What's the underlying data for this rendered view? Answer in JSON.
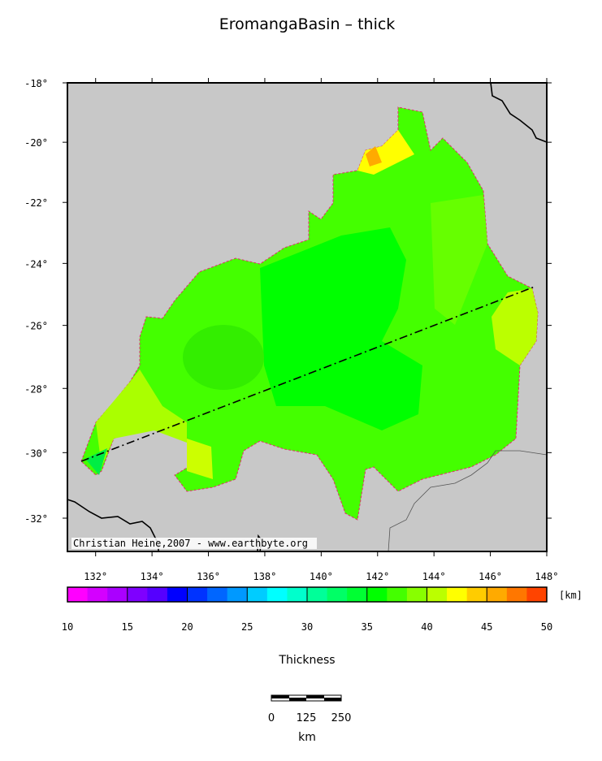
{
  "title": "EromangaBasin – thick",
  "map": {
    "lonlim": [
      131,
      148
    ],
    "latlim": [
      -18,
      -33
    ],
    "lon_ticks": [
      {
        "value": 132,
        "label": "132°"
      },
      {
        "value": 134,
        "label": "134°"
      },
      {
        "value": 136,
        "label": "136°"
      },
      {
        "value": 138,
        "label": "138°"
      },
      {
        "value": 140,
        "label": "140°"
      },
      {
        "value": 142,
        "label": "142°"
      },
      {
        "value": 144,
        "label": "144°"
      },
      {
        "value": 146,
        "label": "146°"
      },
      {
        "value": 148,
        "label": "148°"
      }
    ],
    "lat_ticks": [
      {
        "value": -18,
        "label": "-18°"
      },
      {
        "value": -20,
        "label": "-20°"
      },
      {
        "value": -22,
        "label": "-22°"
      },
      {
        "value": -24,
        "label": "-24°"
      },
      {
        "value": -26,
        "label": "-26°"
      },
      {
        "value": -28,
        "label": "-28°"
      },
      {
        "value": -30,
        "label": "-30°"
      },
      {
        "value": -32,
        "label": "-32°"
      }
    ],
    "credit": "Christian Heine,2007 - www.earthbyte.org"
  },
  "colorbar": {
    "label": "Thickness",
    "unit": "[km]",
    "lim": [
      10,
      50
    ],
    "ticks": [
      10,
      15,
      20,
      25,
      30,
      35,
      40,
      45,
      50
    ],
    "colors": [
      "#ff00ff",
      "#d400ff",
      "#aa00ff",
      "#7f00ff",
      "#5500ff",
      "#0000ff",
      "#0033ff",
      "#0066ff",
      "#0099ff",
      "#00ccff",
      "#00ffff",
      "#00ffcc",
      "#00ff99",
      "#00ff66",
      "#00ff33",
      "#00ff00",
      "#44ff00",
      "#88ff00",
      "#bbff00",
      "#ffff00",
      "#ffcc00",
      "#ffaa00",
      "#ff7700",
      "#ff4400"
    ]
  },
  "scalebar": {
    "labels": [
      "0",
      "125",
      "250"
    ],
    "unit": "km"
  }
}
